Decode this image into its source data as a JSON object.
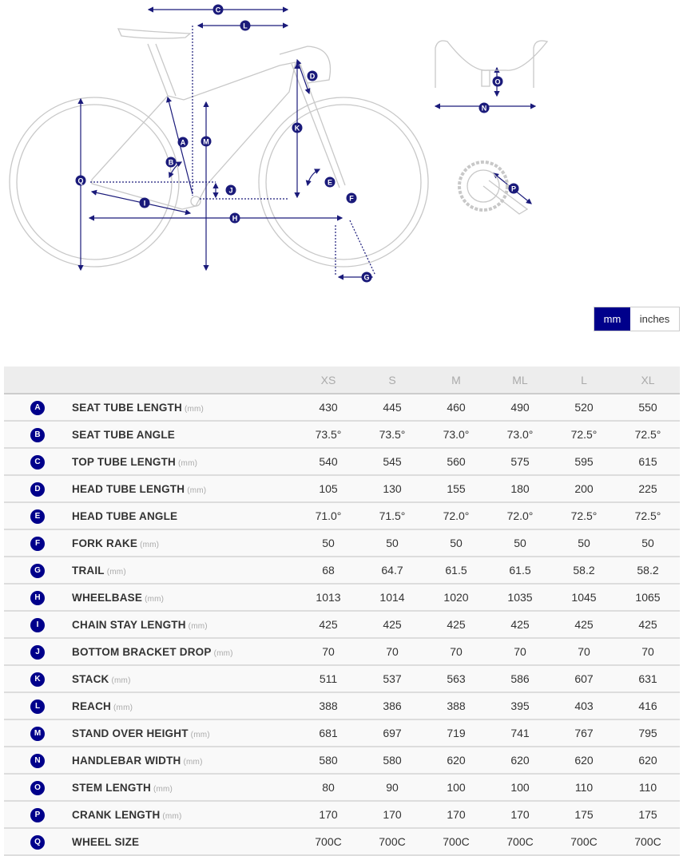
{
  "diagram_labels": [
    "A",
    "B",
    "C",
    "D",
    "E",
    "F",
    "G",
    "H",
    "I",
    "J",
    "K",
    "L",
    "M",
    "N",
    "O",
    "P",
    "Q"
  ],
  "colors": {
    "accent": "#00008b",
    "line": "#c8c8c8"
  },
  "units": {
    "mm": "mm",
    "inches": "inches",
    "selected": "mm"
  },
  "sizes": [
    "XS",
    "S",
    "M",
    "ML",
    "L",
    "XL"
  ],
  "rows": [
    {
      "letter": "A",
      "name": "SEAT TUBE LENGTH",
      "unit": "(mm)",
      "values": [
        "430",
        "445",
        "460",
        "490",
        "520",
        "550"
      ]
    },
    {
      "letter": "B",
      "name": "SEAT TUBE ANGLE",
      "unit": "",
      "values": [
        "73.5°",
        "73.5°",
        "73.0°",
        "73.0°",
        "72.5°",
        "72.5°"
      ]
    },
    {
      "letter": "C",
      "name": "TOP TUBE LENGTH",
      "unit": "(mm)",
      "values": [
        "540",
        "545",
        "560",
        "575",
        "595",
        "615"
      ]
    },
    {
      "letter": "D",
      "name": "HEAD TUBE LENGTH",
      "unit": "(mm)",
      "values": [
        "105",
        "130",
        "155",
        "180",
        "200",
        "225"
      ]
    },
    {
      "letter": "E",
      "name": "HEAD TUBE ANGLE",
      "unit": "",
      "values": [
        "71.0°",
        "71.5°",
        "72.0°",
        "72.0°",
        "72.5°",
        "72.5°"
      ]
    },
    {
      "letter": "F",
      "name": "FORK RAKE",
      "unit": "(mm)",
      "values": [
        "50",
        "50",
        "50",
        "50",
        "50",
        "50"
      ]
    },
    {
      "letter": "G",
      "name": "TRAIL",
      "unit": "(mm)",
      "values": [
        "68",
        "64.7",
        "61.5",
        "61.5",
        "58.2",
        "58.2"
      ]
    },
    {
      "letter": "H",
      "name": "WHEELBASE",
      "unit": "(mm)",
      "values": [
        "1013",
        "1014",
        "1020",
        "1035",
        "1045",
        "1065"
      ]
    },
    {
      "letter": "I",
      "name": "CHAIN STAY LENGTH",
      "unit": "(mm)",
      "values": [
        "425",
        "425",
        "425",
        "425",
        "425",
        "425"
      ]
    },
    {
      "letter": "J",
      "name": "BOTTOM BRACKET DROP",
      "unit": "(mm)",
      "values": [
        "70",
        "70",
        "70",
        "70",
        "70",
        "70"
      ]
    },
    {
      "letter": "K",
      "name": "STACK",
      "unit": "(mm)",
      "values": [
        "511",
        "537",
        "563",
        "586",
        "607",
        "631"
      ]
    },
    {
      "letter": "L",
      "name": "REACH",
      "unit": "(mm)",
      "values": [
        "388",
        "386",
        "388",
        "395",
        "403",
        "416"
      ]
    },
    {
      "letter": "M",
      "name": "STAND OVER HEIGHT",
      "unit": "(mm)",
      "values": [
        "681",
        "697",
        "719",
        "741",
        "767",
        "795"
      ]
    },
    {
      "letter": "N",
      "name": "HANDLEBAR WIDTH",
      "unit": "(mm)",
      "values": [
        "580",
        "580",
        "620",
        "620",
        "620",
        "620"
      ]
    },
    {
      "letter": "O",
      "name": "STEM LENGTH",
      "unit": "(mm)",
      "values": [
        "80",
        "90",
        "100",
        "100",
        "110",
        "110"
      ]
    },
    {
      "letter": "P",
      "name": "CRANK LENGTH",
      "unit": "(mm)",
      "values": [
        "170",
        "170",
        "170",
        "170",
        "175",
        "175"
      ]
    },
    {
      "letter": "Q",
      "name": "WHEEL SIZE",
      "unit": "",
      "values": [
        "700C",
        "700C",
        "700C",
        "700C",
        "700C",
        "700C"
      ]
    }
  ]
}
